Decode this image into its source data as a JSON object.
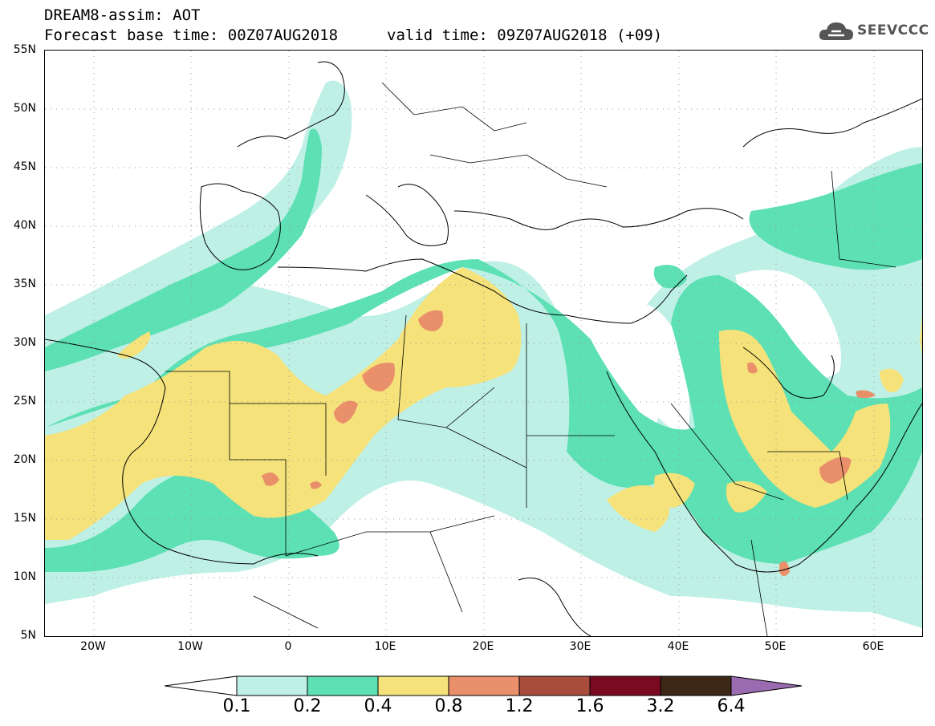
{
  "header": {
    "title": "DREAM8-assim: AOT",
    "base_time": "Forecast base time: 00Z07AUG2018",
    "valid_time": "valid time: 09Z07AUG2018 (+09)"
  },
  "logo": {
    "text": "SEEVCCC",
    "icon": "cloud-logo-icon",
    "color": "#555555"
  },
  "map": {
    "latitude_labels": [
      "55N",
      "50N",
      "45N",
      "40N",
      "35N",
      "30N",
      "25N",
      "20N",
      "15N",
      "10N",
      "5N"
    ],
    "longitude_labels": [
      "20W",
      "10W",
      "0",
      "10E",
      "20E",
      "30E",
      "40E",
      "50E",
      "60E"
    ],
    "lat_range": [
      5,
      55
    ],
    "lon_range": [
      -25,
      65
    ],
    "grid": "dotted"
  },
  "colorbar": {
    "labels": [
      "0.1",
      "0.2",
      "0.4",
      "0.8",
      "1.2",
      "1.6",
      "3.2",
      "6.4"
    ],
    "colors": [
      "#ffffff",
      "#bff0e6",
      "#5ce0b4",
      "#f5e27a",
      "#e9906a",
      "#a84c3c",
      "#7a0a22",
      "#3d2818",
      "#9a6bb0"
    ]
  },
  "levels_colors": {
    "aot_0_1": "#bff0e6",
    "aot_0_2": "#5ce0b4",
    "aot_0_4": "#f5e27a",
    "aot_0_8": "#e9906a"
  }
}
